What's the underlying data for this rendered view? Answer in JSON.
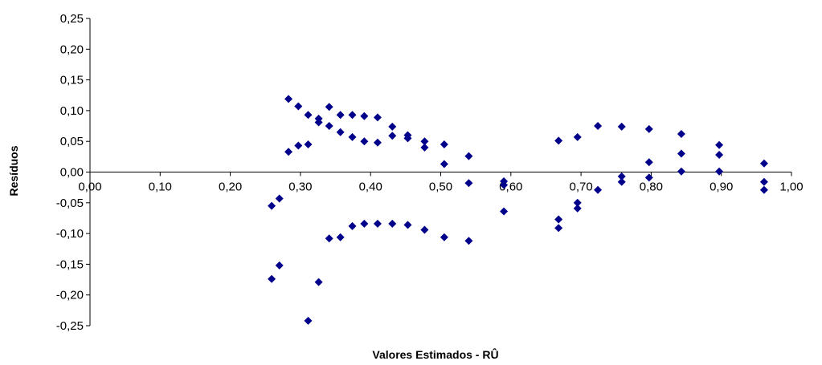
{
  "chart_data": {
    "type": "scatter",
    "title": "",
    "xlabel": "Valores Estimados - RÛ",
    "ylabel": "Resíduos",
    "xlim": [
      0,
      1
    ],
    "ylim": [
      -0.25,
      0.25
    ],
    "grid": false,
    "legend": "none",
    "x_ticks": [
      "0,00",
      "0,10",
      "0,20",
      "0,30",
      "0,40",
      "0,50",
      "0,60",
      "0,70",
      "0,80",
      "0,90",
      "1,00"
    ],
    "y_ticks": [
      "0,25",
      "0,20",
      "0,15",
      "0,10",
      "0,05",
      "0,00",
      "-0,05",
      "-0,10",
      "-0,15",
      "-0,20",
      "-0,25"
    ],
    "marker_color": "#00008B",
    "series": [
      {
        "points": [
          [
            0.259,
            -0.055
          ],
          [
            0.259,
            -0.174
          ],
          [
            0.27,
            -0.043
          ],
          [
            0.27,
            -0.152
          ],
          [
            0.283,
            0.119
          ],
          [
            0.283,
            0.033
          ],
          [
            0.297,
            0.107
          ],
          [
            0.297,
            0.043
          ],
          [
            0.311,
            0.093
          ],
          [
            0.311,
            0.045
          ],
          [
            0.311,
            -0.242
          ],
          [
            0.326,
            0.087
          ],
          [
            0.326,
            0.081
          ],
          [
            0.326,
            -0.179
          ],
          [
            0.341,
            0.106
          ],
          [
            0.341,
            0.075
          ],
          [
            0.341,
            -0.108
          ],
          [
            0.357,
            0.093
          ],
          [
            0.357,
            0.065
          ],
          [
            0.357,
            -0.106
          ],
          [
            0.374,
            0.093
          ],
          [
            0.374,
            0.057
          ],
          [
            0.374,
            -0.088
          ],
          [
            0.391,
            0.091
          ],
          [
            0.391,
            0.05
          ],
          [
            0.391,
            -0.084
          ],
          [
            0.41,
            0.089
          ],
          [
            0.41,
            0.048
          ],
          [
            0.41,
            -0.084
          ],
          [
            0.431,
            0.074
          ],
          [
            0.431,
            0.059
          ],
          [
            0.431,
            -0.084
          ],
          [
            0.453,
            0.06
          ],
          [
            0.453,
            0.055
          ],
          [
            0.453,
            -0.086
          ],
          [
            0.477,
            0.05
          ],
          [
            0.477,
            0.04
          ],
          [
            0.477,
            -0.094
          ],
          [
            0.505,
            0.045
          ],
          [
            0.505,
            0.013
          ],
          [
            0.505,
            -0.106
          ],
          [
            0.54,
            0.026
          ],
          [
            0.54,
            -0.018
          ],
          [
            0.54,
            -0.112
          ],
          [
            0.59,
            -0.015
          ],
          [
            0.59,
            -0.021
          ],
          [
            0.59,
            -0.064
          ],
          [
            0.668,
            0.051
          ],
          [
            0.668,
            -0.077
          ],
          [
            0.668,
            -0.091
          ],
          [
            0.695,
            0.057
          ],
          [
            0.695,
            -0.05
          ],
          [
            0.695,
            -0.059
          ],
          [
            0.724,
            0.075
          ],
          [
            0.724,
            -0.029
          ],
          [
            0.758,
            0.074
          ],
          [
            0.758,
            -0.007
          ],
          [
            0.758,
            -0.016
          ],
          [
            0.797,
            0.07
          ],
          [
            0.797,
            0.016
          ],
          [
            0.797,
            -0.009
          ],
          [
            0.843,
            0.062
          ],
          [
            0.843,
            0.03
          ],
          [
            0.843,
            0.001
          ],
          [
            0.897,
            0.044
          ],
          [
            0.897,
            0.028
          ],
          [
            0.897,
            0.001
          ],
          [
            0.961,
            0.014
          ],
          [
            0.961,
            -0.016
          ],
          [
            0.961,
            -0.029
          ]
        ]
      }
    ]
  }
}
